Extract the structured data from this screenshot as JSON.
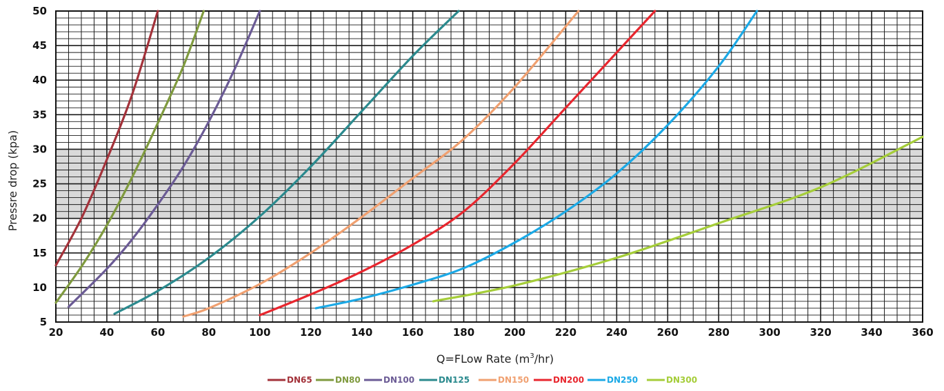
{
  "chart_data": {
    "type": "line",
    "title": "",
    "xlabel": "Q=FLow Rate (m",
    "xlabel_sup": "3",
    "xlabel_tail": "/hr)",
    "ylabel": "Pressre drop (kpa)",
    "xlim": [
      20,
      360
    ],
    "ylim": [
      5,
      50
    ],
    "x_ticks": [
      20,
      40,
      60,
      80,
      100,
      120,
      140,
      160,
      180,
      200,
      220,
      240,
      260,
      280,
      300,
      320,
      340,
      360
    ],
    "y_ticks": [
      5,
      10,
      15,
      20,
      25,
      30,
      35,
      40,
      45,
      50
    ],
    "grid": true,
    "minor_grid": {
      "x_step": 5,
      "y_step": 1
    },
    "highlight_band": {
      "y": [
        20,
        30
      ],
      "color": "#d9d9d9"
    },
    "legend_position": "bottom-center",
    "series": [
      {
        "name": "DN65",
        "color": "#a3323a",
        "x": [
          20,
          30,
          40,
          50,
          60
        ],
        "y": [
          13.2,
          20.0,
          28.5,
          38.0,
          50.0
        ]
      },
      {
        "name": "DN80",
        "color": "#7f9a3e",
        "x": [
          20,
          30,
          40,
          50,
          60,
          70,
          78
        ],
        "y": [
          7.8,
          13.0,
          19.0,
          26.0,
          33.8,
          42.0,
          50.0
        ]
      },
      {
        "name": "DN100",
        "color": "#6b5b95",
        "x": [
          25,
          40,
          50,
          60,
          70,
          80,
          90,
          100
        ],
        "y": [
          7.2,
          12.7,
          17.0,
          22.0,
          27.5,
          34.0,
          41.5,
          50.0
        ]
      },
      {
        "name": "DN125",
        "color": "#2b8a8e",
        "x": [
          43,
          60,
          80,
          100,
          120,
          140,
          160,
          178
        ],
        "y": [
          6.2,
          9.5,
          14.3,
          20.3,
          27.5,
          35.5,
          43.5,
          50.0
        ]
      },
      {
        "name": "DN150",
        "color": "#f0a070",
        "x": [
          70,
          80,
          100,
          120,
          140,
          160,
          180,
          200,
          225
        ],
        "y": [
          5.8,
          7.0,
          10.5,
          15.0,
          20.2,
          25.8,
          31.5,
          39.0,
          50.0
        ]
      },
      {
        "name": "DN200",
        "color": "#e8262e",
        "x": [
          100,
          120,
          140,
          160,
          180,
          200,
          220,
          240,
          255
        ],
        "y": [
          6.0,
          9.0,
          12.3,
          16.2,
          21.0,
          28.0,
          36.0,
          44.0,
          50.0
        ]
      },
      {
        "name": "DN250",
        "color": "#1ba9e6",
        "x": [
          122,
          140,
          160,
          180,
          200,
          220,
          240,
          260,
          280,
          295
        ],
        "y": [
          7.0,
          8.4,
          10.4,
          12.8,
          16.5,
          21.0,
          26.5,
          33.5,
          42.0,
          50.0
        ]
      },
      {
        "name": "DN300",
        "color": "#a5cd39",
        "x": [
          168,
          200,
          240,
          280,
          320,
          360
        ],
        "y": [
          8.0,
          10.3,
          14.3,
          19.3,
          24.5,
          31.8
        ]
      }
    ]
  }
}
